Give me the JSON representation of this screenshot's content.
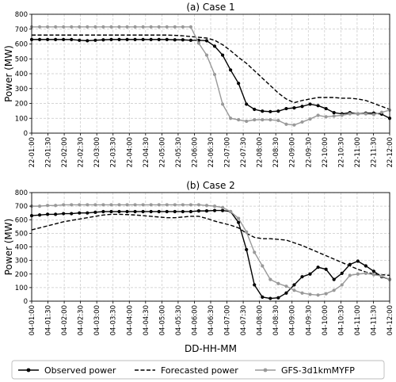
{
  "legend": {
    "entries": [
      "Observed power",
      "Forecasted power",
      "GFS-3d1kmMYFP"
    ]
  },
  "styles": {
    "observed_color": "#000000",
    "forecast_color": "#000000",
    "gfs_color": "#999999"
  },
  "chart_data": [
    {
      "type": "line",
      "title": "(a) Case 1",
      "ylabel": "Power (MW)",
      "xlabel": "",
      "ylim": [
        0,
        800
      ],
      "yticks": [
        0,
        100,
        200,
        300,
        400,
        500,
        600,
        700,
        800
      ],
      "grid": true,
      "tick_labels": [
        "22-01:00",
        "22-01:30",
        "22-02:00",
        "22-02:30",
        "22-03:00",
        "22-03:30",
        "22-04:00",
        "22-04:30",
        "22-05:00",
        "22-05:30",
        "22-06:00",
        "22-06:30",
        "22-07:00",
        "22-07:30",
        "22-08:00",
        "22-08:30",
        "22-09:00",
        "22-09:30",
        "22-10:00",
        "22-10:30",
        "22-11:00",
        "22-11:30",
        "22-12:00"
      ],
      "series": [
        {
          "name": "Observed power",
          "style": "solid-marker",
          "values": [
            630,
            630,
            630,
            630,
            630,
            630,
            625,
            622,
            625,
            628,
            630,
            630,
            630,
            630,
            630,
            630,
            630,
            630,
            628,
            628,
            625,
            625,
            622,
            585,
            525,
            425,
            335,
            195,
            160,
            148,
            145,
            148,
            165,
            170,
            180,
            195,
            185,
            165,
            138,
            130,
            138,
            130,
            135,
            135,
            128,
            100
          ]
        },
        {
          "name": "Forecasted power",
          "style": "dashed",
          "values": [
            660,
            660,
            660,
            660,
            660,
            660,
            660,
            660,
            660,
            660,
            660,
            660,
            660,
            660,
            660,
            660,
            660,
            660,
            658,
            655,
            650,
            645,
            640,
            625,
            595,
            555,
            510,
            470,
            420,
            370,
            320,
            270,
            230,
            205,
            220,
            230,
            240,
            240,
            240,
            235,
            235,
            230,
            220,
            200,
            180,
            160
          ]
        },
        {
          "name": "GFS-3d1kmMYFP",
          "style": "solid-marker",
          "values": [
            715,
            715,
            715,
            715,
            715,
            715,
            715,
            715,
            715,
            715,
            715,
            715,
            715,
            715,
            715,
            715,
            715,
            715,
            715,
            715,
            715,
            605,
            525,
            395,
            195,
            100,
            90,
            80,
            90,
            90,
            90,
            85,
            60,
            55,
            75,
            95,
            120,
            110,
            115,
            120,
            130,
            130,
            130,
            125,
            140,
            155
          ]
        }
      ]
    },
    {
      "type": "line",
      "title": "(b) Case 2",
      "ylabel": "Power (MW)",
      "xlabel": "DD-HH-MM",
      "ylim": [
        0,
        800
      ],
      "yticks": [
        0,
        100,
        200,
        300,
        400,
        500,
        600,
        700,
        800
      ],
      "grid": true,
      "tick_labels": [
        "04-01:00",
        "04-01:30",
        "04-02:00",
        "04-02:30",
        "04-03:00",
        "04-03:30",
        "04-04:00",
        "04-04:30",
        "04-05:00",
        "04-05:30",
        "04-06:00",
        "04-06:30",
        "04-07:00",
        "04-07:30",
        "04-08:00",
        "04-08:30",
        "04-09:00",
        "04-09:30",
        "04-10:00",
        "04-10:30",
        "04-11:00",
        "04-11:30",
        "04-12:00"
      ],
      "series": [
        {
          "name": "Observed power",
          "style": "solid-marker",
          "values": [
            630,
            635,
            640,
            640,
            645,
            645,
            650,
            650,
            655,
            660,
            660,
            660,
            660,
            660,
            660,
            660,
            660,
            660,
            660,
            660,
            660,
            665,
            665,
            668,
            668,
            660,
            580,
            380,
            120,
            30,
            20,
            25,
            60,
            120,
            180,
            200,
            250,
            235,
            160,
            205,
            270,
            295,
            260,
            220,
            180,
            160
          ]
        },
        {
          "name": "Forecasted power",
          "style": "dashed",
          "values": [
            525,
            540,
            555,
            570,
            585,
            595,
            605,
            615,
            625,
            635,
            640,
            640,
            638,
            635,
            630,
            625,
            620,
            615,
            615,
            620,
            625,
            625,
            610,
            590,
            575,
            560,
            540,
            500,
            470,
            460,
            460,
            455,
            450,
            430,
            410,
            385,
            360,
            335,
            310,
            285,
            260,
            235,
            215,
            200,
            195,
            190
          ]
        },
        {
          "name": "GFS-3d1kmMYFP",
          "style": "solid-marker",
          "values": [
            700,
            700,
            705,
            705,
            710,
            710,
            710,
            710,
            710,
            710,
            710,
            710,
            710,
            710,
            710,
            710,
            710,
            710,
            710,
            710,
            710,
            710,
            705,
            700,
            690,
            660,
            610,
            510,
            360,
            260,
            160,
            130,
            110,
            80,
            60,
            50,
            45,
            55,
            80,
            120,
            190,
            200,
            205,
            195,
            185,
            160
          ]
        }
      ]
    }
  ]
}
